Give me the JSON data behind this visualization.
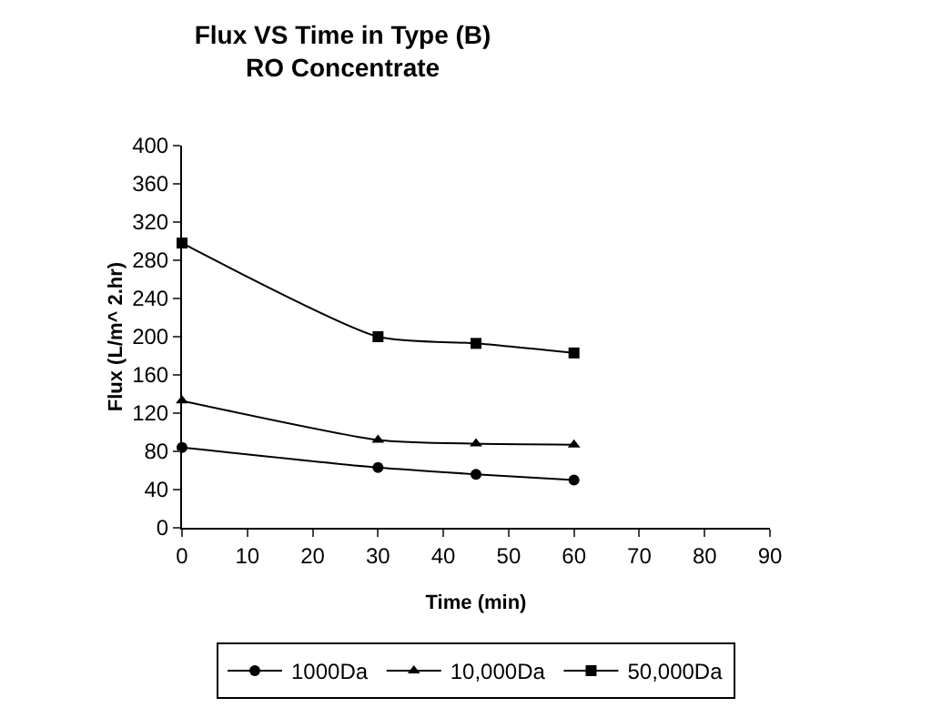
{
  "chart_data": {
    "type": "line",
    "title": "Flux VS Time in Type (B)\nRO Concentrate",
    "xlabel": "Time (min)",
    "ylabel": "Flux (L/m^ 2.hr)",
    "x": [
      0,
      30,
      45,
      60
    ],
    "series": [
      {
        "name": "1000Da",
        "color": "#000000",
        "marker": "circle",
        "values": [
          84,
          63,
          56,
          50
        ]
      },
      {
        "name": "10,000Da",
        "color": "#000000",
        "marker": "triangle",
        "values": [
          133,
          92,
          88,
          87
        ]
      },
      {
        "name": "50,000Da",
        "color": "#000000",
        "marker": "square",
        "values": [
          298,
          200,
          193,
          183
        ]
      }
    ],
    "xlim": [
      0,
      90
    ],
    "xticks": [
      0,
      10,
      20,
      30,
      40,
      50,
      60,
      70,
      80,
      90
    ],
    "ylim": [
      0,
      400
    ],
    "yticks": [
      0,
      40,
      80,
      120,
      160,
      200,
      240,
      280,
      320,
      360,
      400
    ],
    "grid": false,
    "legend": "bottom",
    "line_style": "solid"
  }
}
